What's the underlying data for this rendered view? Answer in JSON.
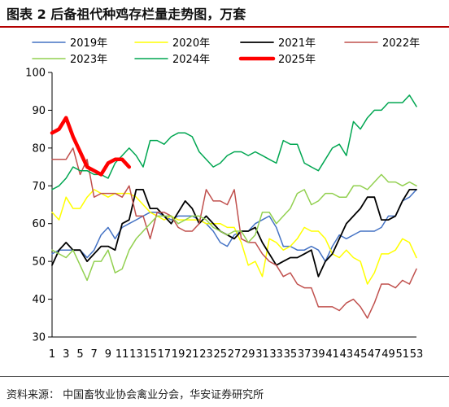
{
  "header": {
    "title": "图表 2 后备祖代种鸡存栏量走势图，万套"
  },
  "footer": {
    "source": "资料来源： 中国畜牧业协会禽业分会，华安证券研究所"
  },
  "chart_data": {
    "type": "line",
    "title": "图表 2 后备祖代种鸡存栏量走势图，万套",
    "xlabel": "",
    "ylabel": "",
    "ylim": [
      30,
      100
    ],
    "yticks": [
      30,
      40,
      50,
      60,
      70,
      80,
      90,
      100
    ],
    "xlim": [
      1,
      53
    ],
    "xtick_labels": [
      "1",
      "3",
      "5",
      "7",
      "9",
      "11",
      "13",
      "15",
      "17",
      "19",
      "21",
      "23",
      "25",
      "27",
      "29",
      "31",
      "33",
      "35",
      "37",
      "39",
      "41",
      "43",
      "45",
      "47",
      "49",
      "51",
      "53"
    ],
    "legend_position": "top",
    "grid": false,
    "series": [
      {
        "name": "2019年",
        "color": "#4472c4",
        "width": 1.5,
        "values": [
          52,
          53,
          53,
          53,
          53,
          51,
          53,
          57,
          59,
          56,
          59,
          60,
          61,
          62,
          63,
          63,
          62,
          61,
          62,
          62,
          62,
          61,
          60,
          58,
          55,
          54,
          57,
          58,
          58,
          60,
          61,
          62,
          59,
          54,
          54,
          53,
          53,
          54,
          53,
          50,
          54,
          57,
          56,
          57,
          58,
          58,
          58,
          59,
          62,
          62,
          66,
          67,
          69
        ]
      },
      {
        "name": "2020年",
        "color": "#ffff00",
        "width": 1.5,
        "values": [
          63,
          61,
          67,
          64,
          64,
          67,
          69,
          68,
          67,
          68,
          68,
          68,
          67,
          65,
          63,
          62,
          61,
          62,
          61,
          61,
          61,
          61,
          60,
          60,
          60,
          59,
          59,
          55,
          49,
          50,
          46,
          56,
          55,
          53,
          54,
          56,
          59,
          58,
          58,
          56,
          52,
          51,
          53,
          51,
          50,
          44,
          47,
          52,
          52,
          53,
          56,
          55,
          51
        ]
      },
      {
        "name": "2021年",
        "color": "#000000",
        "width": 1.8,
        "values": [
          49,
          53,
          55,
          53,
          53,
          50,
          52,
          54,
          54,
          53,
          60,
          61,
          69,
          69,
          64,
          64,
          62,
          60,
          63,
          66,
          64,
          60,
          62,
          60,
          58,
          57,
          56,
          58,
          58,
          59,
          55,
          52,
          49,
          50,
          51,
          51,
          52,
          53,
          46,
          50,
          52,
          56,
          60,
          62,
          64,
          67,
          67,
          61,
          61,
          62,
          66,
          69,
          69
        ]
      },
      {
        "name": "2022年",
        "color": "#c0504d",
        "width": 1.5,
        "values": [
          77,
          77,
          77,
          80,
          73,
          77,
          67,
          68,
          68,
          68,
          67,
          70,
          62,
          62,
          56,
          63,
          63,
          62,
          59,
          58,
          58,
          60,
          69,
          66,
          66,
          65,
          69,
          56,
          55,
          55,
          52,
          50,
          49,
          46,
          47,
          44,
          43,
          43,
          38,
          38,
          38,
          37,
          39,
          40,
          38,
          35,
          39,
          44,
          44,
          43,
          45,
          44,
          48
        ]
      },
      {
        "name": "2023年",
        "color": "#92d050",
        "width": 1.5,
        "values": [
          53,
          52,
          51,
          53,
          49,
          45,
          50,
          50,
          53,
          47,
          48,
          53,
          56,
          58,
          60,
          62,
          62,
          62,
          60,
          61,
          62,
          62,
          61,
          59,
          58,
          57,
          58,
          58,
          55,
          57,
          63,
          63,
          60,
          62,
          64,
          68,
          69,
          65,
          66,
          68,
          68,
          67,
          67,
          70,
          70,
          69,
          71,
          73,
          71,
          71,
          70,
          71,
          70
        ]
      },
      {
        "name": "2024年",
        "color": "#00a651",
        "width": 1.5,
        "values": [
          69,
          70,
          72,
          75,
          74,
          74,
          73,
          73,
          72,
          76,
          78,
          80,
          78,
          75,
          82,
          82,
          81,
          83,
          84,
          84,
          83,
          79,
          77,
          75,
          76,
          78,
          79,
          79,
          78,
          79,
          78,
          77,
          76,
          82,
          81,
          81,
          76,
          75,
          74,
          77,
          80,
          81,
          78,
          87,
          85,
          88,
          90,
          90,
          92,
          92,
          92,
          94,
          91
        ]
      },
      {
        "name": "2025年",
        "color": "#ff0000",
        "width": 4.5,
        "values": [
          84,
          85,
          88,
          83,
          79,
          75,
          74,
          73,
          76,
          77,
          77,
          75
        ]
      }
    ]
  }
}
